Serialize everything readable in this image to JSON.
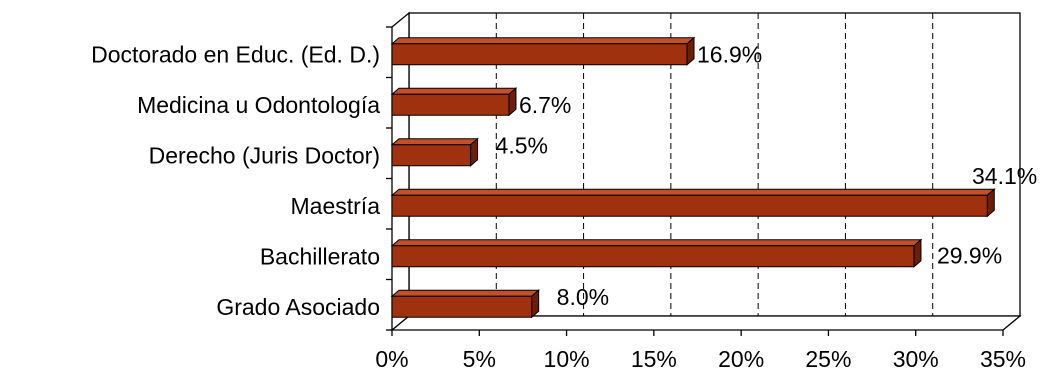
{
  "chart_data": {
    "type": "bar",
    "orientation": "horizontal",
    "style": "3d",
    "categories": [
      "Doctorado en Educ. (Ed. D.)",
      "Medicina u Odontología",
      "Derecho (Juris Doctor)",
      "Maestría",
      "Bachillerato",
      "Grado Asociado"
    ],
    "values": [
      16.9,
      6.7,
      4.5,
      34.1,
      29.9,
      8.0
    ],
    "value_labels": [
      "16.9%",
      "6.7%",
      "4.5%",
      "34.1%",
      "29.9%",
      "8.0%"
    ],
    "x_ticks": [
      "0%",
      "5%",
      "10%",
      "15%",
      "20%",
      "25%",
      "30%",
      "35%"
    ],
    "xlim": [
      0,
      35
    ],
    "grid": true,
    "legend": false,
    "colors": {
      "bar_front": "#A0310F",
      "bar_top": "#C4502A",
      "bar_side": "#6B1F08",
      "gridline": "#000000"
    }
  }
}
